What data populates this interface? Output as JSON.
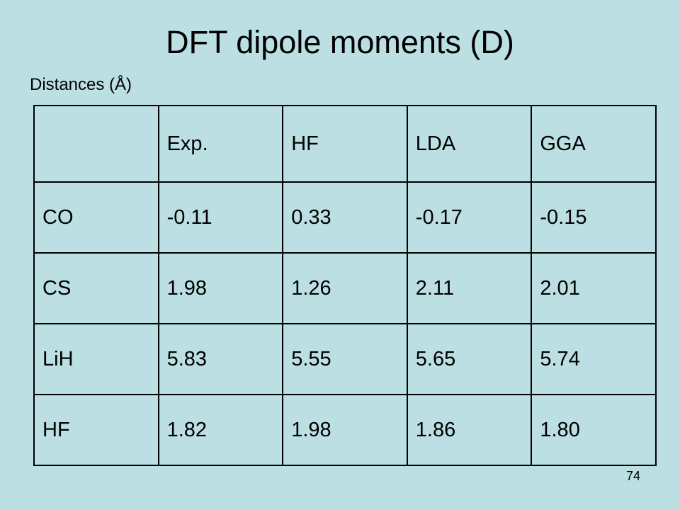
{
  "title": "DFT dipole moments (D)",
  "subtitle": "Distances (Å)",
  "table": {
    "columns": [
      "Exp.",
      "HF",
      "LDA",
      "GGA"
    ],
    "rows": [
      {
        "label": "CO",
        "values": [
          "-0.11",
          "0.33",
          "-0.17",
          "-0.15"
        ]
      },
      {
        "label": "CS",
        "values": [
          "1.98",
          "1.26",
          "2.11",
          "2.01"
        ]
      },
      {
        "label": "LiH",
        "values": [
          "5.83",
          "5.55",
          "5.65",
          "5.74"
        ]
      },
      {
        "label": "HF",
        "values": [
          "1.82",
          "1.98",
          "1.86",
          "1.80"
        ]
      }
    ]
  },
  "page_number": "74"
}
